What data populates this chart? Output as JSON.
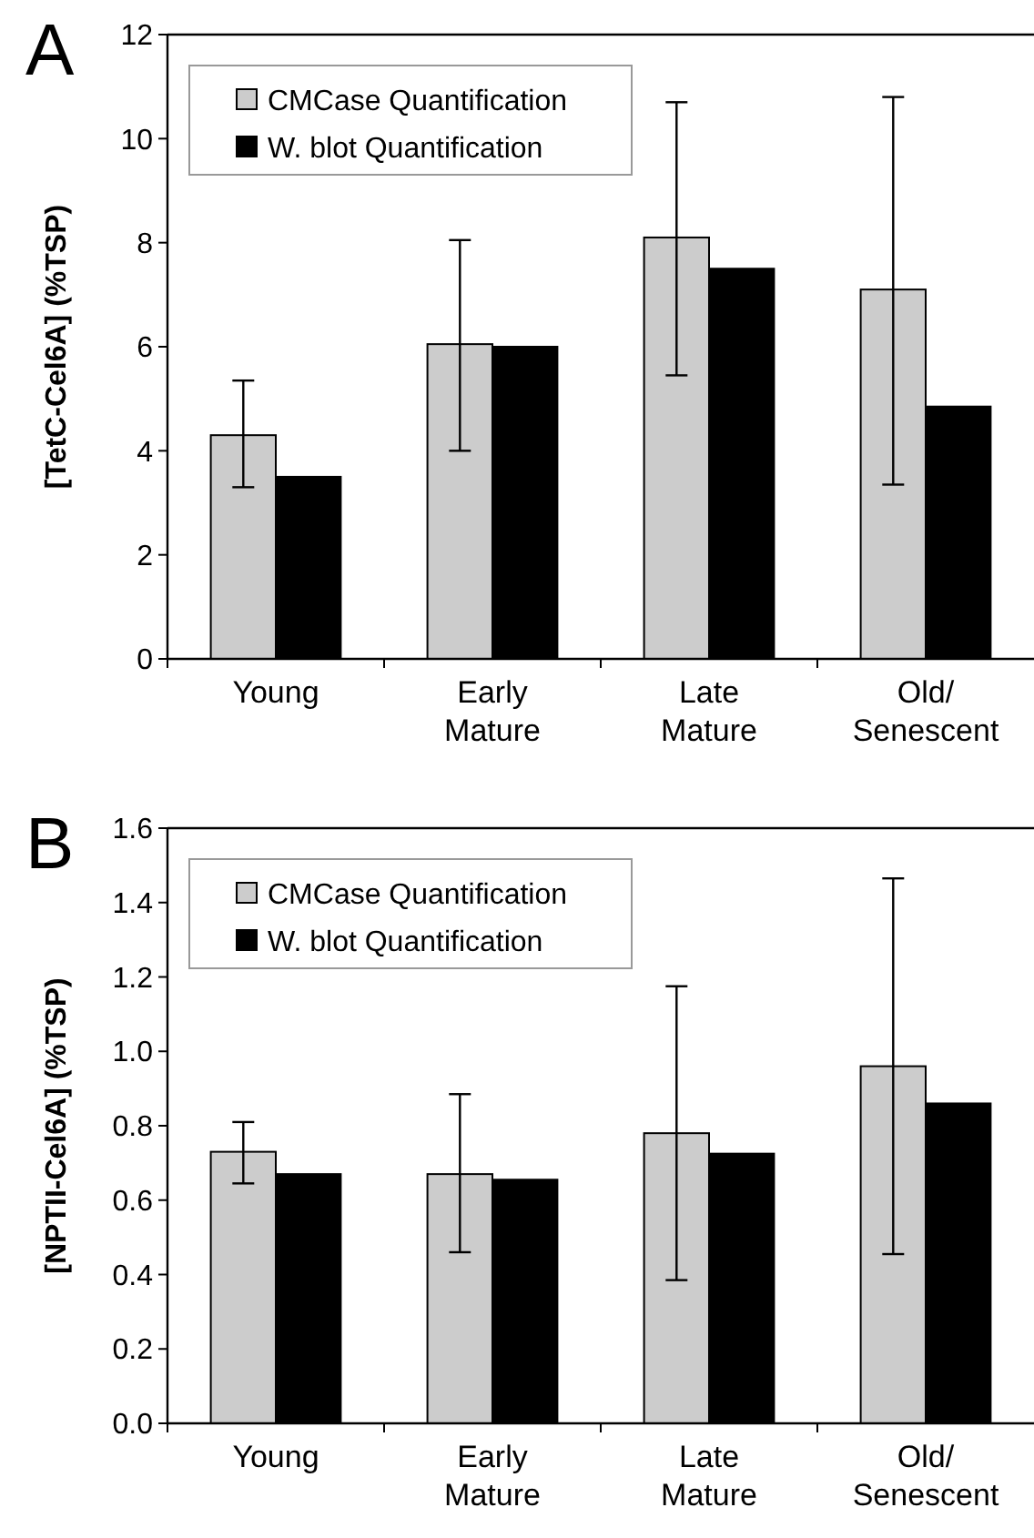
{
  "chart_data": [
    {
      "type": "bar",
      "title": "A",
      "ylabel": "[TetC-Cel6A] (%TSP)",
      "categories": [
        "Young",
        "Early Mature",
        "Late Mature",
        "Old/ Senescent"
      ],
      "series": [
        {
          "name": "CMCase Quantification",
          "color": "#cccccc",
          "values": [
            4.3,
            6.05,
            8.1,
            7.1
          ],
          "errors": [
            [
              3.3,
              5.35
            ],
            [
              4.0,
              8.05
            ],
            [
              5.45,
              10.7
            ],
            [
              3.35,
              10.8
            ]
          ]
        },
        {
          "name": "W. blot Quantification",
          "color": "#000000",
          "values": [
            3.5,
            6.0,
            7.5,
            4.85
          ]
        }
      ],
      "ylim": [
        0,
        12
      ],
      "yticks": [
        0,
        2,
        4,
        6,
        8,
        10,
        12
      ],
      "grid": false,
      "legend": "top left"
    },
    {
      "type": "bar",
      "title": "B",
      "ylabel": "[NPTII-Cel6A] (%TSP)",
      "categories": [
        "Young",
        "Early Mature",
        "Late Mature",
        "Old/ Senescent"
      ],
      "series": [
        {
          "name": "CMCase Quantification",
          "color": "#cccccc",
          "values": [
            0.73,
            0.67,
            0.78,
            0.96
          ],
          "errors": [
            [
              0.645,
              0.81
            ],
            [
              0.46,
              0.885
            ],
            [
              0.385,
              1.175
            ],
            [
              0.455,
              1.465
            ]
          ]
        },
        {
          "name": "W. blot Quantification",
          "color": "#000000",
          "values": [
            0.67,
            0.655,
            0.725,
            0.86
          ]
        }
      ],
      "ylim": [
        0,
        1.6
      ],
      "yticks": [
        {
          "value": 0,
          "label": "0.0"
        },
        0.2,
        0.4,
        0.6,
        0.8,
        {
          "value": 1,
          "label": "1.0"
        },
        1.2,
        1.4,
        1.6
      ],
      "grid": false,
      "legend": "top left"
    }
  ]
}
